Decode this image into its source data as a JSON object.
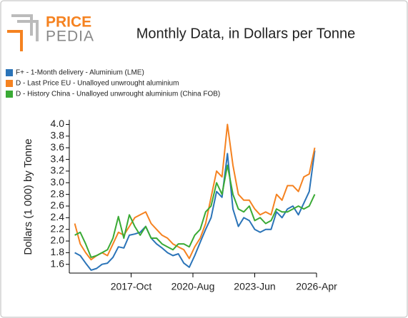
{
  "logo": {
    "part1": "PRICE",
    "part2": "PEDIA"
  },
  "chart_data": {
    "type": "line",
    "title": "Monthly Data, in Dollars per Tonne",
    "y_label": "Dollars (1 000) by Tonne",
    "x": [
      "2015-Mar",
      "2015-Jun",
      "2015-Sep",
      "2015-Dec",
      "2016-Mar",
      "2016-Jun",
      "2016-Sep",
      "2016-Dec",
      "2017-Mar",
      "2017-Jun",
      "2017-Sep",
      "2017-Dec",
      "2018-Mar",
      "2018-Jun",
      "2018-Sep",
      "2018-Dec",
      "2019-Mar",
      "2019-Jun",
      "2019-Sep",
      "2019-Dec",
      "2020-Mar",
      "2020-Jun",
      "2020-Sep",
      "2020-Dec",
      "2021-Mar",
      "2021-Jun",
      "2021-Sep",
      "2021-Dec",
      "2022-Mar",
      "2022-Jun",
      "2022-Sep",
      "2022-Dec",
      "2023-Mar",
      "2023-Jun",
      "2023-Sep",
      "2023-Dec",
      "2024-Mar",
      "2024-Jun",
      "2024-Sep",
      "2024-Dec",
      "2025-Mar",
      "2025-Jun",
      "2025-Sep",
      "2025-Dec",
      "2026-Mar"
    ],
    "series": [
      {
        "name": "F+ - 1-Month delivery - Aluminium (LME)",
        "color": "#2b74b8",
        "values": [
          1.8,
          1.75,
          1.62,
          1.5,
          1.53,
          1.6,
          1.62,
          1.72,
          1.9,
          1.88,
          2.1,
          2.12,
          2.15,
          2.25,
          2.05,
          1.95,
          1.88,
          1.8,
          1.75,
          1.78,
          1.62,
          1.55,
          1.75,
          1.98,
          2.2,
          2.4,
          2.85,
          2.75,
          3.5,
          2.55,
          2.25,
          2.4,
          2.35,
          2.2,
          2.15,
          2.2,
          2.2,
          2.5,
          2.4,
          2.55,
          2.6,
          2.45,
          2.65,
          2.85,
          3.55
        ]
      },
      {
        "name": "D - Last Price EU - Unalloyed unwrought aluminium",
        "color": "#f58220",
        "values": [
          2.3,
          1.95,
          1.8,
          1.68,
          1.75,
          1.8,
          1.75,
          1.95,
          2.15,
          2.1,
          2.25,
          2.4,
          2.45,
          2.5,
          2.3,
          2.2,
          2.1,
          2.05,
          1.95,
          1.9,
          1.85,
          1.7,
          1.9,
          2.05,
          2.3,
          2.75,
          3.2,
          3.1,
          4.0,
          3.3,
          2.8,
          2.7,
          2.7,
          2.55,
          2.45,
          2.5,
          2.45,
          2.8,
          2.7,
          2.95,
          2.95,
          2.85,
          3.1,
          3.15,
          3.6
        ]
      },
      {
        "name": "D - History China - Unalloyed unwrought aluminium (China FOB)",
        "color": "#3aaa35",
        "values": [
          2.1,
          2.15,
          1.95,
          1.72,
          1.75,
          1.8,
          1.85,
          2.05,
          2.42,
          2.05,
          2.45,
          2.25,
          2.1,
          2.25,
          2.05,
          2.05,
          1.95,
          1.9,
          1.85,
          1.95,
          1.95,
          1.9,
          2.1,
          2.2,
          2.5,
          2.6,
          3.0,
          2.8,
          3.3,
          2.8,
          2.55,
          2.5,
          2.6,
          2.35,
          2.4,
          2.3,
          2.35,
          2.55,
          2.5,
          2.5,
          2.55,
          2.6,
          2.55,
          2.6,
          2.8
        ]
      }
    ],
    "xlim": [
      "2014-Dec",
      "2026-Apr"
    ],
    "xticks": [
      "2017-Oct",
      "2020-Aug",
      "2023-Jun",
      "2026-Apr"
    ],
    "ylim": [
      1.45,
      4.08
    ],
    "yticks": [
      1.6,
      1.8,
      {
        "value": 2,
        "label": "2.0"
      },
      2.2,
      2.4,
      2.6,
      2.8,
      {
        "value": 3,
        "label": "3.0"
      },
      3.2,
      3.4,
      3.6,
      3.8,
      {
        "value": 4,
        "label": "4.0"
      }
    ],
    "legend": "top-left"
  }
}
